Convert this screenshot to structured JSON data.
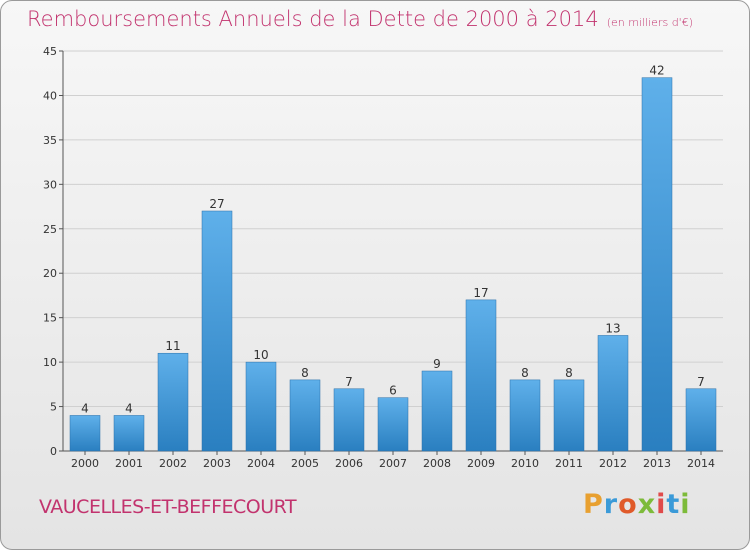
{
  "header": {
    "title": "Remboursements Annuels de la Dette de 2000 à 2014",
    "unit": "(en milliers d'€)"
  },
  "footer": {
    "commune": "VAUCELLES-ET-BEFFECOURT",
    "logo_letters": [
      "P",
      "r",
      "o",
      "x",
      "i",
      "t",
      "i"
    ],
    "logo_colors": [
      "#e8a030",
      "#3a9ad8",
      "#e05a2a",
      "#7dbb3a",
      "#e04a4a",
      "#3a9ad8",
      "#7dbb3a"
    ]
  },
  "colors": {
    "bar_top": "#5fb0ea",
    "bar_bottom": "#2a7fc0",
    "title": "#c2336e",
    "grid": "#d0d0d0"
  },
  "chart_data": {
    "type": "bar",
    "title": "Remboursements Annuels de la Dette de 2000 à 2014",
    "subtitle": "(en milliers d'€)",
    "categories": [
      "2000",
      "2001",
      "2002",
      "2003",
      "2004",
      "2005",
      "2006",
      "2007",
      "2008",
      "2009",
      "2010",
      "2011",
      "2012",
      "2013",
      "2014"
    ],
    "values": [
      4,
      4,
      11,
      27,
      10,
      8,
      7,
      6,
      9,
      17,
      8,
      8,
      13,
      42,
      7
    ],
    "yticks": [
      0,
      5,
      10,
      15,
      20,
      25,
      30,
      35,
      40,
      45
    ],
    "ylim": [
      0,
      45
    ],
    "grid": true,
    "xlabel": "",
    "ylabel": ""
  }
}
